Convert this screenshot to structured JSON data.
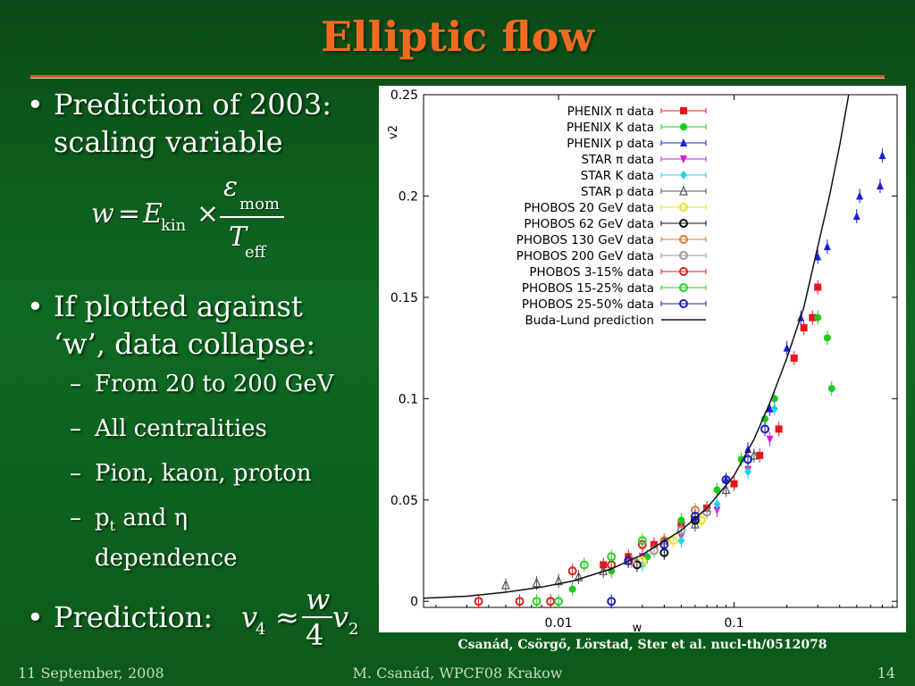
{
  "slide": {
    "title": "Elliptic flow",
    "bullet1_line1": "Prediction of 2003:",
    "bullet1_line2": "scaling variable",
    "formula": {
      "w": "w",
      "eq": "=",
      "E": "E",
      "kin": "kin",
      "times": "×",
      "eps": "ε",
      "mom": "mom",
      "T": "T",
      "eff": "eff"
    },
    "bullet2_line1": "If plotted against",
    "bullet2_line2": "‘w’, data collapse:",
    "sub1": "From 20 to 200 GeV",
    "sub2": "All centralities",
    "sub3": "Pion, kaon, proton",
    "sub4_p": "p",
    "sub4_t": "t",
    "sub4_rest": " and η",
    "sub4_line2": "dependence",
    "prediction_label": "Prediction:",
    "pred_formula": {
      "v4": "v",
      "s4": "4",
      "approx": "≈",
      "w": "w",
      "four": "4",
      "v2": "v",
      "s2": "2"
    },
    "caption": "Csanád, Csörgő, Lörstad, Ster et al. nucl-th/0512078",
    "footer_left": "11 September, 2008",
    "footer_center": "M. Csanád, WPCF08 Krakow",
    "footer_right": "14"
  },
  "chart_data": {
    "type": "scatter",
    "title": "",
    "xlabel": "w",
    "ylabel": "v2",
    "xscale": "log",
    "xlim": [
      0.0017,
      0.85
    ],
    "ylim": [
      -0.003,
      0.25
    ],
    "xticks": [
      {
        "v": 0.01,
        "label": "0.01"
      },
      {
        "v": 0.1,
        "label": "0.1"
      }
    ],
    "yticks": [
      {
        "v": 0,
        "label": "0"
      },
      {
        "v": 0.05,
        "label": "0.05"
      },
      {
        "v": 0.1,
        "label": "0.1"
      },
      {
        "v": 0.15,
        "label": "0.15"
      },
      {
        "v": 0.2,
        "label": "0.2"
      },
      {
        "v": 0.25,
        "label": "0.25"
      }
    ],
    "legend_position": "top-right",
    "series": [
      {
        "name": "PHENIX π data",
        "color": "#e8141c",
        "marker": "square",
        "points": [
          [
            0.018,
            0.018
          ],
          [
            0.025,
            0.022
          ],
          [
            0.035,
            0.028
          ],
          [
            0.05,
            0.038
          ],
          [
            0.07,
            0.046
          ],
          [
            0.1,
            0.058
          ],
          [
            0.14,
            0.072
          ],
          [
            0.18,
            0.085
          ],
          [
            0.22,
            0.12
          ],
          [
            0.25,
            0.135
          ],
          [
            0.28,
            0.14
          ],
          [
            0.3,
            0.155
          ]
        ]
      },
      {
        "name": "PHENIX K data",
        "color": "#1ec81e",
        "marker": "circle",
        "points": [
          [
            0.012,
            0.006
          ],
          [
            0.02,
            0.015
          ],
          [
            0.032,
            0.022
          ],
          [
            0.05,
            0.04
          ],
          [
            0.08,
            0.055
          ],
          [
            0.11,
            0.07
          ],
          [
            0.15,
            0.09
          ],
          [
            0.17,
            0.1
          ],
          [
            0.3,
            0.14
          ],
          [
            0.34,
            0.13
          ],
          [
            0.36,
            0.105
          ]
        ]
      },
      {
        "name": "PHENIX p data",
        "color": "#1e1ed2",
        "marker": "triangle",
        "points": [
          [
            0.06,
            0.04
          ],
          [
            0.09,
            0.06
          ],
          [
            0.12,
            0.075
          ],
          [
            0.16,
            0.095
          ],
          [
            0.2,
            0.125
          ],
          [
            0.24,
            0.14
          ],
          [
            0.3,
            0.17
          ],
          [
            0.34,
            0.175
          ],
          [
            0.5,
            0.19
          ],
          [
            0.52,
            0.2
          ],
          [
            0.68,
            0.205
          ],
          [
            0.7,
            0.22
          ]
        ]
      },
      {
        "name": "STAR π data",
        "color": "#d21ed2",
        "marker": "triangle-down",
        "points": [
          [
            0.03,
            0.022
          ],
          [
            0.05,
            0.032
          ],
          [
            0.08,
            0.045
          ],
          [
            0.12,
            0.065
          ],
          [
            0.16,
            0.08
          ]
        ]
      },
      {
        "name": "STAR K data",
        "color": "#1ed2e6",
        "marker": "diamond",
        "points": [
          [
            0.03,
            0.018
          ],
          [
            0.05,
            0.03
          ],
          [
            0.08,
            0.048
          ],
          [
            0.12,
            0.064
          ],
          [
            0.17,
            0.095
          ]
        ]
      },
      {
        "name": "STAR p data",
        "color": "#555555",
        "marker": "triangle-open",
        "points": [
          [
            0.005,
            0.008
          ],
          [
            0.0075,
            0.009
          ],
          [
            0.01,
            0.01
          ],
          [
            0.013,
            0.012
          ],
          [
            0.018,
            0.015
          ],
          [
            0.025,
            0.02
          ],
          [
            0.04,
            0.03
          ],
          [
            0.06,
            0.038
          ],
          [
            0.09,
            0.055
          ],
          [
            0.13,
            0.072
          ]
        ]
      },
      {
        "name": "PHOBOS 20 GeV data",
        "color": "#e6e61e",
        "marker": "circle-open",
        "points": [
          [
            0.03,
            0.02
          ],
          [
            0.045,
            0.03
          ],
          [
            0.065,
            0.04
          ]
        ]
      },
      {
        "name": "PHOBOS 62 GeV data",
        "color": "#111111",
        "marker": "circle-open",
        "points": [
          [
            0.028,
            0.018
          ],
          [
            0.04,
            0.024
          ],
          [
            0.06,
            0.04
          ]
        ]
      },
      {
        "name": "PHOBOS 130 GeV data",
        "color": "#e6782a",
        "marker": "circle-open",
        "points": [
          [
            0.026,
            0.02
          ],
          [
            0.04,
            0.03
          ],
          [
            0.06,
            0.045
          ]
        ]
      },
      {
        "name": "PHOBOS 200 GeV data",
        "color": "#999999",
        "marker": "circle-open",
        "points": [
          [
            0.035,
            0.025
          ],
          [
            0.05,
            0.035
          ],
          [
            0.07,
            0.044
          ]
        ]
      },
      {
        "name": "PHOBOS 3-15% data",
        "color": "#e01e1e",
        "marker": "circle-open",
        "points": [
          [
            0.0035,
            0.0
          ],
          [
            0.006,
            0.0
          ],
          [
            0.009,
            0.0
          ],
          [
            0.012,
            0.015
          ],
          [
            0.02,
            0.018
          ],
          [
            0.03,
            0.028
          ]
        ]
      },
      {
        "name": "PHOBOS 15-25% data",
        "color": "#2ad22a",
        "marker": "circle-open",
        "points": [
          [
            0.0075,
            0.0
          ],
          [
            0.01,
            0.0
          ],
          [
            0.014,
            0.018
          ],
          [
            0.02,
            0.022
          ],
          [
            0.03,
            0.03
          ]
        ]
      },
      {
        "name": "PHOBOS 25-50% data",
        "color": "#1e1ebe",
        "marker": "circle-open",
        "points": [
          [
            0.02,
            0.0
          ],
          [
            0.025,
            0.02
          ],
          [
            0.04,
            0.028
          ],
          [
            0.06,
            0.042
          ],
          [
            0.09,
            0.06
          ],
          [
            0.12,
            0.07
          ],
          [
            0.15,
            0.085
          ]
        ]
      },
      {
        "name": "Buda-Lund prediction",
        "color": "#111111",
        "marker": "line",
        "points": [
          [
            0.0017,
            0.0015
          ],
          [
            0.003,
            0.0025
          ],
          [
            0.005,
            0.0045
          ],
          [
            0.008,
            0.007
          ],
          [
            0.012,
            0.01
          ],
          [
            0.02,
            0.016
          ],
          [
            0.03,
            0.023
          ],
          [
            0.05,
            0.035
          ],
          [
            0.07,
            0.046
          ],
          [
            0.1,
            0.062
          ],
          [
            0.13,
            0.08
          ],
          [
            0.16,
            0.098
          ],
          [
            0.2,
            0.12
          ],
          [
            0.25,
            0.145
          ],
          [
            0.3,
            0.175
          ],
          [
            0.35,
            0.2
          ],
          [
            0.4,
            0.225
          ],
          [
            0.45,
            0.25
          ]
        ]
      }
    ]
  }
}
